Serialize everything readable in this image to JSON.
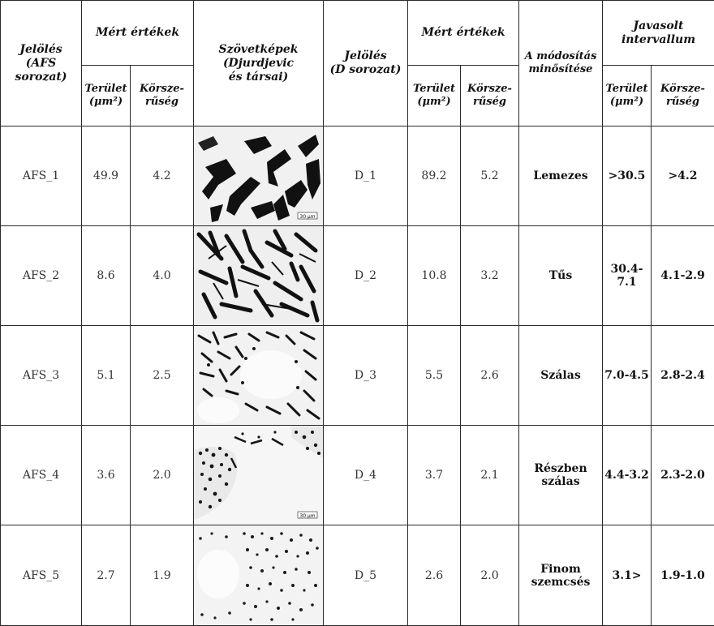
{
  "header": {
    "jeloles_afs": "Jelölés\n(AFS\nsorozat)",
    "mert_ertekek_1": "Mért értékek",
    "szovetkepek": "Szövetképek\n(Djurdjevic\nés társai)",
    "jeloles_d": "Jelölés\n(D sorozat)",
    "mert_ertekek_2": "Mért értékek",
    "modositas": "A módosítás\nminősítése",
    "javasolt": "Javasolt\nintervallum",
    "terulet": "Terület\n(μm²)",
    "korszeruseg": "Körsze-\nrűség"
  },
  "rows": [
    {
      "afs": "AFS_1",
      "afs_area": "49.9",
      "afs_circ": "4.2",
      "micro_icon": "micrograph-lamellar",
      "scale": "30 μm",
      "d": "D_1",
      "d_area": "89.2",
      "d_circ": "5.2",
      "quality": "Lemezes",
      "int_area": ">30.5",
      "int_circ": ">4.2"
    },
    {
      "afs": "AFS_2",
      "afs_area": "8.6",
      "afs_circ": "4.0",
      "micro_icon": "micrograph-acicular",
      "scale": "",
      "d": "D_2",
      "d_area": "10.8",
      "d_circ": "3.2",
      "quality": "Tűs",
      "int_area": "30.4-\n7.1",
      "int_circ": "4.1-2.9"
    },
    {
      "afs": "AFS_3",
      "afs_area": "5.1",
      "afs_circ": "2.5",
      "micro_icon": "micrograph-fibrous",
      "scale": "",
      "d": "D_3",
      "d_area": "5.5",
      "d_circ": "2.6",
      "quality": "Szálas",
      "int_area": "7.0-4.5",
      "int_circ": "2.8-2.4"
    },
    {
      "afs": "AFS_4",
      "afs_area": "3.6",
      "afs_circ": "2.0",
      "micro_icon": "micrograph-partly-fibrous",
      "scale": "30 μm",
      "d": "D_4",
      "d_area": "3.7",
      "d_circ": "2.1",
      "quality": "Részben\nszálas",
      "int_area": "4.4-3.2",
      "int_circ": "2.3-2.0"
    },
    {
      "afs": "AFS_5",
      "afs_area": "2.7",
      "afs_circ": "1.9",
      "micro_icon": "micrograph-fine-grained",
      "scale": "",
      "d": "D_5",
      "d_area": "2.6",
      "d_circ": "2.0",
      "quality": "Finom\nszemcsés",
      "int_area": "3.1>",
      "int_circ": "1.9-1.0"
    }
  ]
}
